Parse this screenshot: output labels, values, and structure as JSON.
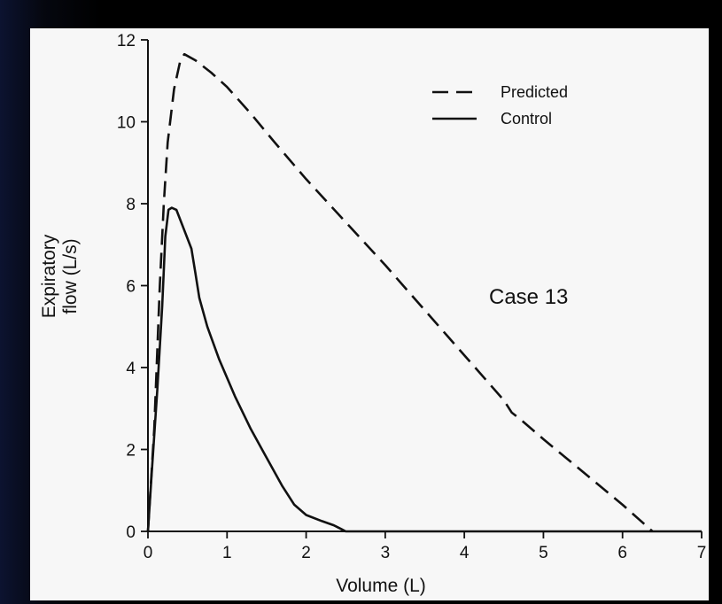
{
  "chart_data": {
    "type": "line",
    "xlabel": "Volume (L)",
    "ylabel_lines": [
      "Expiratory",
      "flow (L/s)"
    ],
    "xlim": [
      0,
      7
    ],
    "ylim": [
      0,
      12
    ],
    "x_ticks": [
      "0",
      "1",
      "2",
      "3",
      "4",
      "5",
      "6",
      "7"
    ],
    "y_ticks": [
      "0",
      "2",
      "4",
      "6",
      "8",
      "10",
      "12"
    ],
    "grid": false,
    "legend_position": "top-right",
    "annotation": "Case 13",
    "series": [
      {
        "name": "Predicted",
        "style": "dashed",
        "color": "#111111",
        "points": [
          [
            0.0,
            0.0
          ],
          [
            0.08,
            2.5
          ],
          [
            0.15,
            6.0
          ],
          [
            0.2,
            8.0
          ],
          [
            0.25,
            9.5
          ],
          [
            0.33,
            10.8
          ],
          [
            0.41,
            11.5
          ],
          [
            0.46,
            11.65
          ],
          [
            0.6,
            11.5
          ],
          [
            0.8,
            11.2
          ],
          [
            1.0,
            10.85
          ],
          [
            1.3,
            10.2
          ],
          [
            1.6,
            9.5
          ],
          [
            2.0,
            8.6
          ],
          [
            2.5,
            7.55
          ],
          [
            3.0,
            6.5
          ],
          [
            3.5,
            5.4
          ],
          [
            4.0,
            4.3
          ],
          [
            4.5,
            3.2
          ],
          [
            4.6,
            2.9
          ],
          [
            4.7,
            2.75
          ],
          [
            5.0,
            2.25
          ],
          [
            5.5,
            1.45
          ],
          [
            6.0,
            0.65
          ],
          [
            6.38,
            0.0
          ]
        ]
      },
      {
        "name": "Control",
        "style": "solid",
        "color": "#111111",
        "points": [
          [
            0.0,
            0.0
          ],
          [
            0.05,
            1.5
          ],
          [
            0.12,
            3.5
          ],
          [
            0.18,
            5.5
          ],
          [
            0.22,
            7.2
          ],
          [
            0.26,
            7.85
          ],
          [
            0.3,
            7.9
          ],
          [
            0.36,
            7.85
          ],
          [
            0.45,
            7.4
          ],
          [
            0.55,
            6.9
          ],
          [
            0.6,
            6.3
          ],
          [
            0.65,
            5.7
          ],
          [
            0.75,
            5.0
          ],
          [
            0.9,
            4.2
          ],
          [
            1.1,
            3.3
          ],
          [
            1.3,
            2.5
          ],
          [
            1.5,
            1.8
          ],
          [
            1.7,
            1.1
          ],
          [
            1.85,
            0.65
          ],
          [
            2.0,
            0.4
          ],
          [
            2.2,
            0.25
          ],
          [
            2.35,
            0.15
          ],
          [
            2.45,
            0.05
          ],
          [
            2.5,
            0.0
          ],
          [
            7.0,
            0.0
          ]
        ]
      }
    ]
  }
}
